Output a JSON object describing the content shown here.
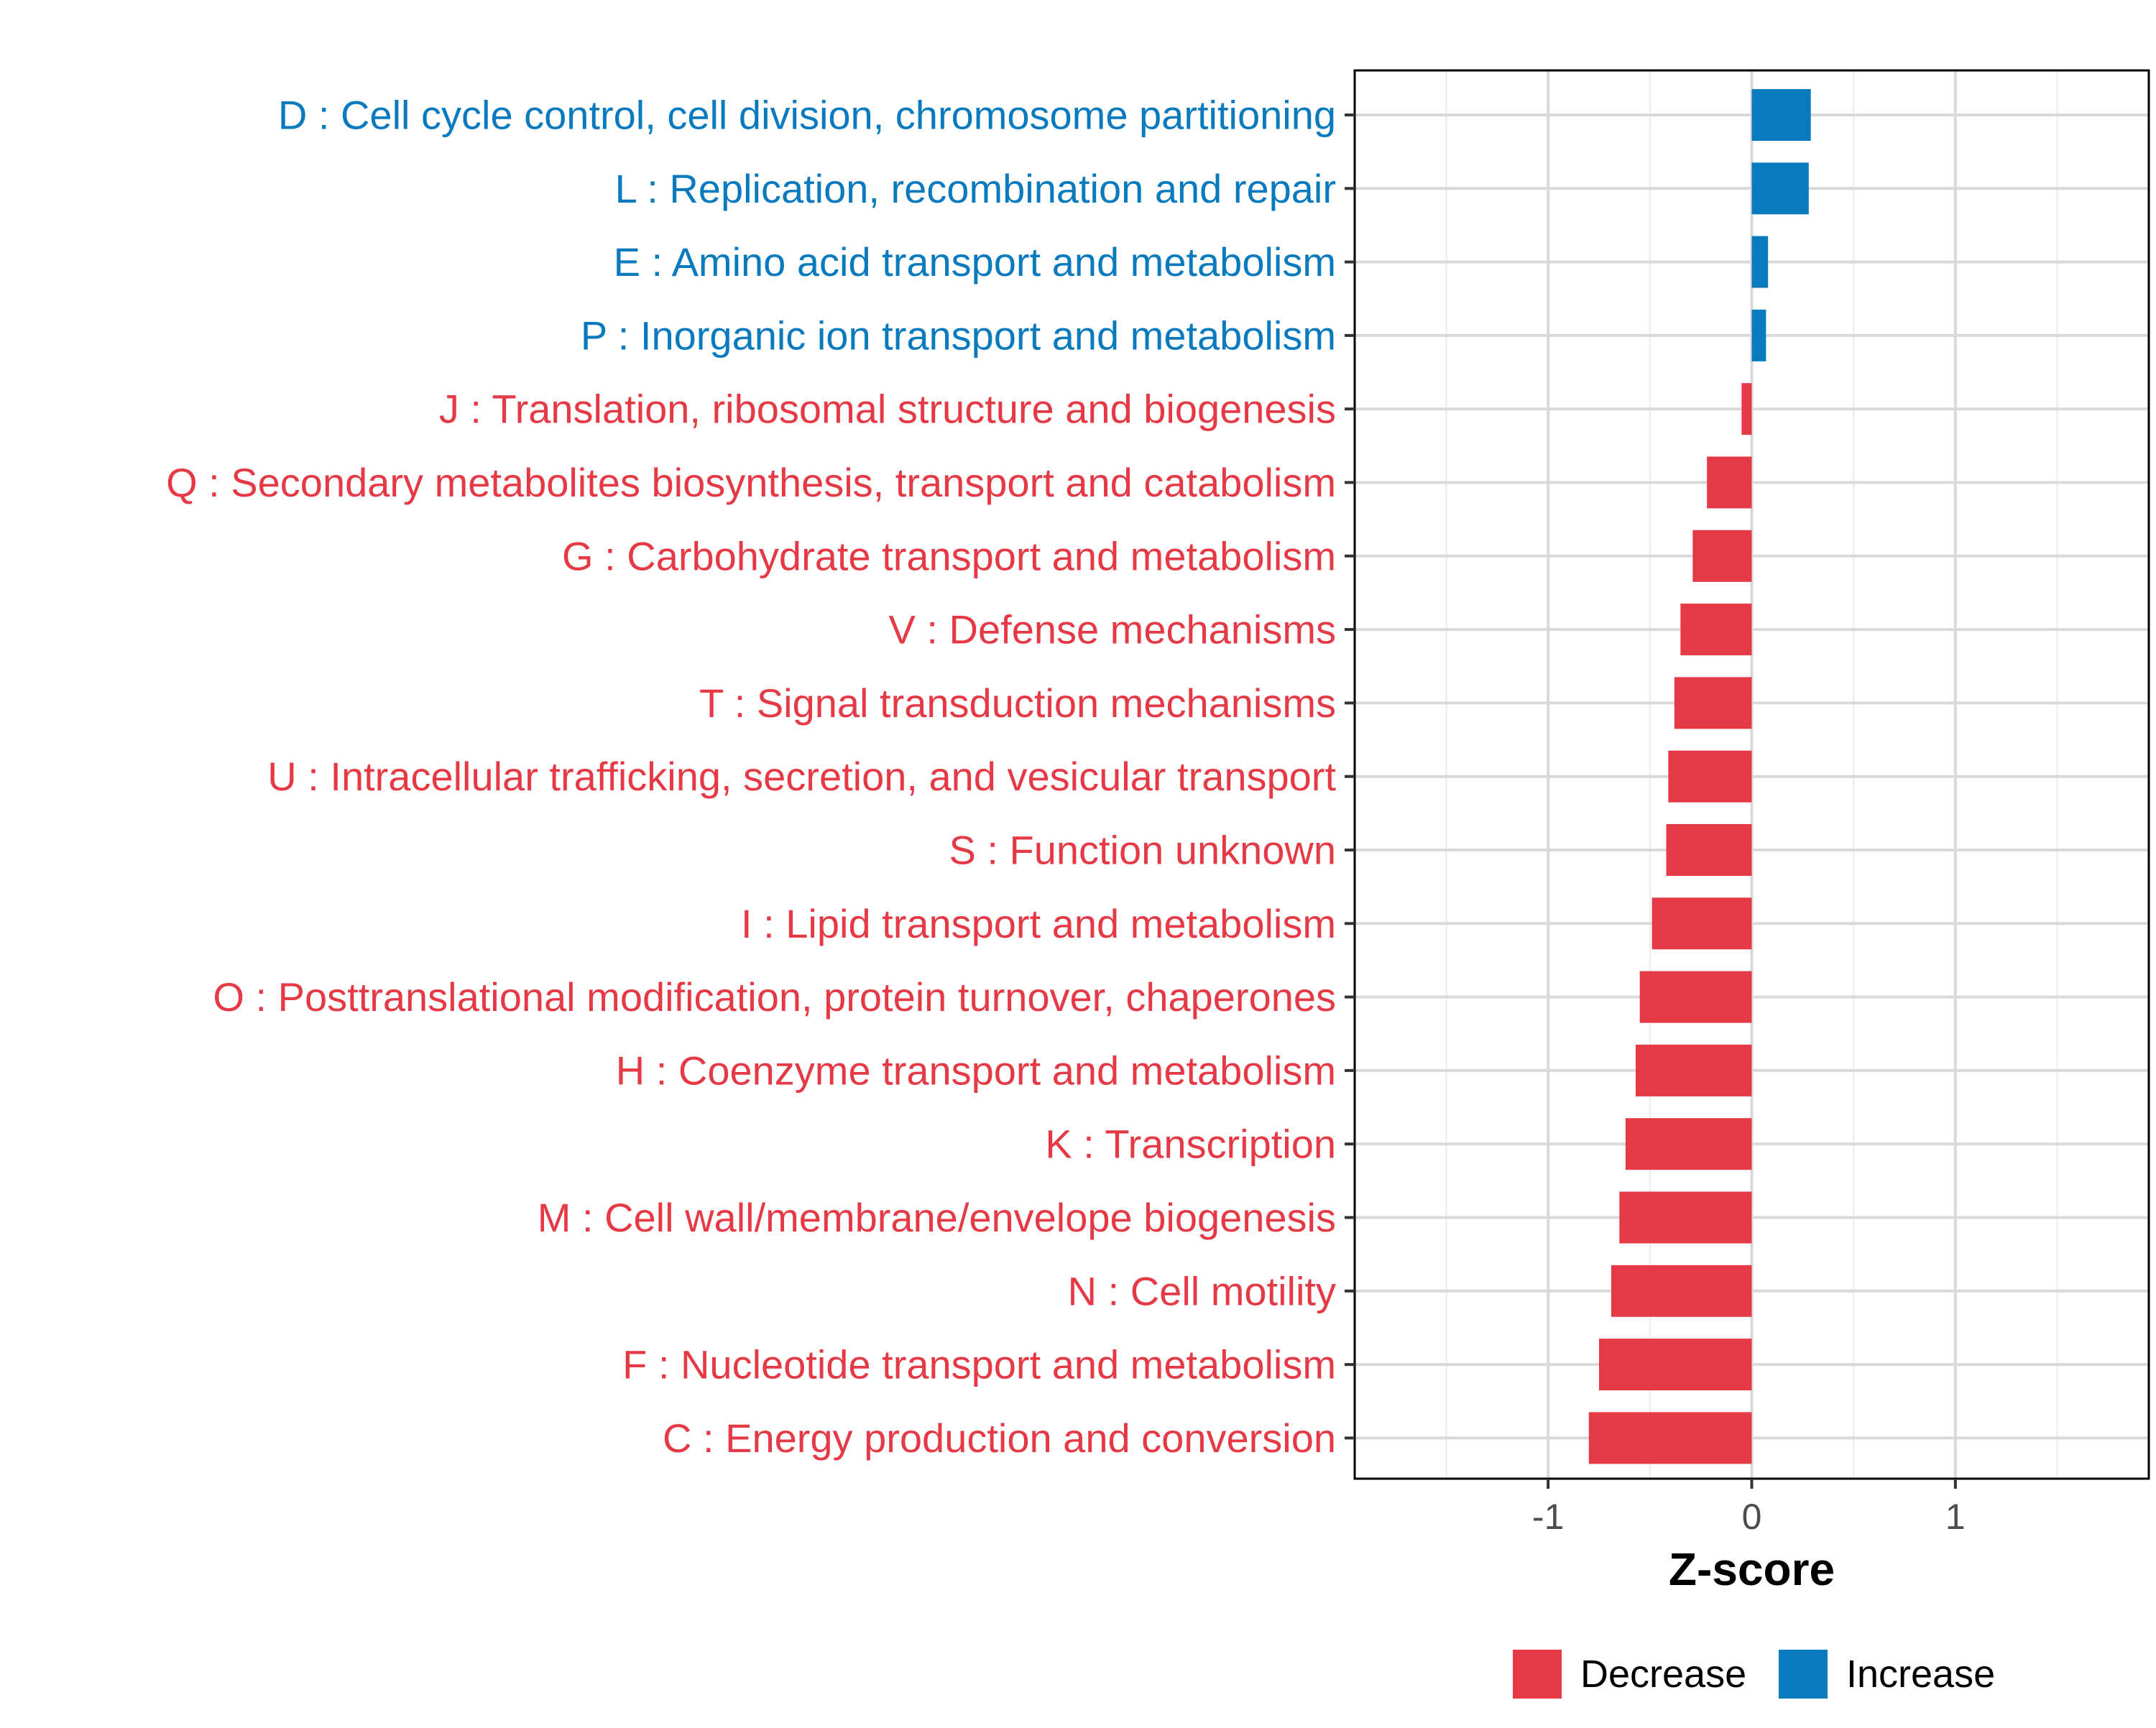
{
  "chart_data": {
    "type": "bar",
    "orientation": "horizontal",
    "title": "",
    "xlabel": "Z-score",
    "ylabel": "",
    "xlim": [
      -1.95,
      1.95
    ],
    "xticks": [
      -1,
      0,
      1
    ],
    "xtick_labels": [
      "-1",
      "0",
      "1"
    ],
    "grid": true,
    "legend_position": "bottom",
    "colors": {
      "Decrease": "#e63946",
      "Increase": "#0a7abf"
    },
    "categories": [
      "D : Cell cycle control, cell division, chromosome partitioning",
      "L : Replication, recombination and repair",
      "E : Amino acid transport and metabolism",
      "P : Inorganic ion transport and metabolism",
      "J : Translation, ribosomal structure and biogenesis",
      "Q : Secondary metabolites biosynthesis, transport and catabolism",
      "G : Carbohydrate transport and metabolism",
      "V : Defense mechanisms",
      "T : Signal transduction mechanisms",
      "U : Intracellular trafficking, secretion, and vesicular transport",
      "S : Function unknown",
      "I : Lipid transport and metabolism",
      "O : Posttranslational modification, protein turnover, chaperones",
      "H : Coenzyme transport and metabolism",
      "K : Transcription",
      "M : Cell wall/membrane/envelope biogenesis",
      "N : Cell motility",
      "F : Nucleotide transport and metabolism",
      "C : Energy production and conversion"
    ],
    "values": [
      0.29,
      0.28,
      0.08,
      0.07,
      -0.05,
      -0.22,
      -0.29,
      -0.35,
      -0.38,
      -0.41,
      -0.42,
      -0.49,
      -0.55,
      -0.57,
      -0.62,
      -0.65,
      -0.69,
      -0.75,
      -0.8
    ],
    "groups": [
      "Increase",
      "Increase",
      "Increase",
      "Increase",
      "Decrease",
      "Decrease",
      "Decrease",
      "Decrease",
      "Decrease",
      "Decrease",
      "Decrease",
      "Decrease",
      "Decrease",
      "Decrease",
      "Decrease",
      "Decrease",
      "Decrease",
      "Decrease",
      "Decrease"
    ],
    "legend": [
      "Decrease",
      "Increase"
    ]
  }
}
